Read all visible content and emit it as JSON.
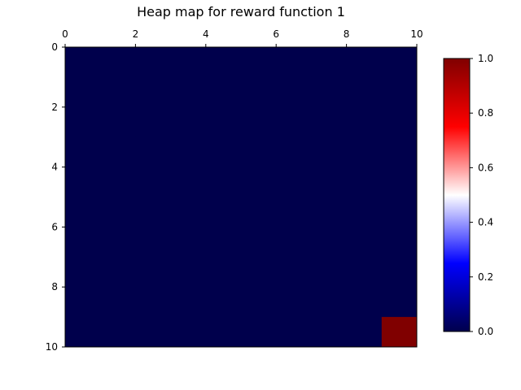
{
  "chart_data": {
    "type": "heatmap",
    "title": "Heap map for reward function 1",
    "xlabel": "",
    "ylabel": "",
    "x_ticks": [
      "0",
      "2",
      "4",
      "6",
      "8",
      "10"
    ],
    "y_ticks": [
      "0",
      "2",
      "4",
      "6",
      "8",
      "10"
    ],
    "xlim": [
      0,
      10
    ],
    "ylim": [
      10,
      0
    ],
    "x_axis_position": "top",
    "grid": false,
    "rows": 10,
    "cols": 10,
    "values": [
      [
        0,
        0,
        0,
        0,
        0,
        0,
        0,
        0,
        0,
        0
      ],
      [
        0,
        0,
        0,
        0,
        0,
        0,
        0,
        0,
        0,
        0
      ],
      [
        0,
        0,
        0,
        0,
        0,
        0,
        0,
        0,
        0,
        0
      ],
      [
        0,
        0,
        0,
        0,
        0,
        0,
        0,
        0,
        0,
        0
      ],
      [
        0,
        0,
        0,
        0,
        0,
        0,
        0,
        0,
        0,
        0
      ],
      [
        0,
        0,
        0,
        0,
        0,
        0,
        0,
        0,
        0,
        0
      ],
      [
        0,
        0,
        0,
        0,
        0,
        0,
        0,
        0,
        0,
        0
      ],
      [
        0,
        0,
        0,
        0,
        0,
        0,
        0,
        0,
        0,
        0
      ],
      [
        0,
        0,
        0,
        0,
        0,
        0,
        0,
        0,
        0,
        0
      ],
      [
        0,
        0,
        0,
        0,
        0,
        0,
        0,
        0,
        0,
        1
      ]
    ],
    "colormap": "seismic",
    "vmin": 0,
    "vmax": 1,
    "colorbar": {
      "position": "right",
      "ticks": [
        "0.0",
        "0.2",
        "0.4",
        "0.6",
        "0.8",
        "1.0"
      ],
      "tick_values": [
        0,
        0.2,
        0.4,
        0.6,
        0.8,
        1.0
      ]
    }
  }
}
